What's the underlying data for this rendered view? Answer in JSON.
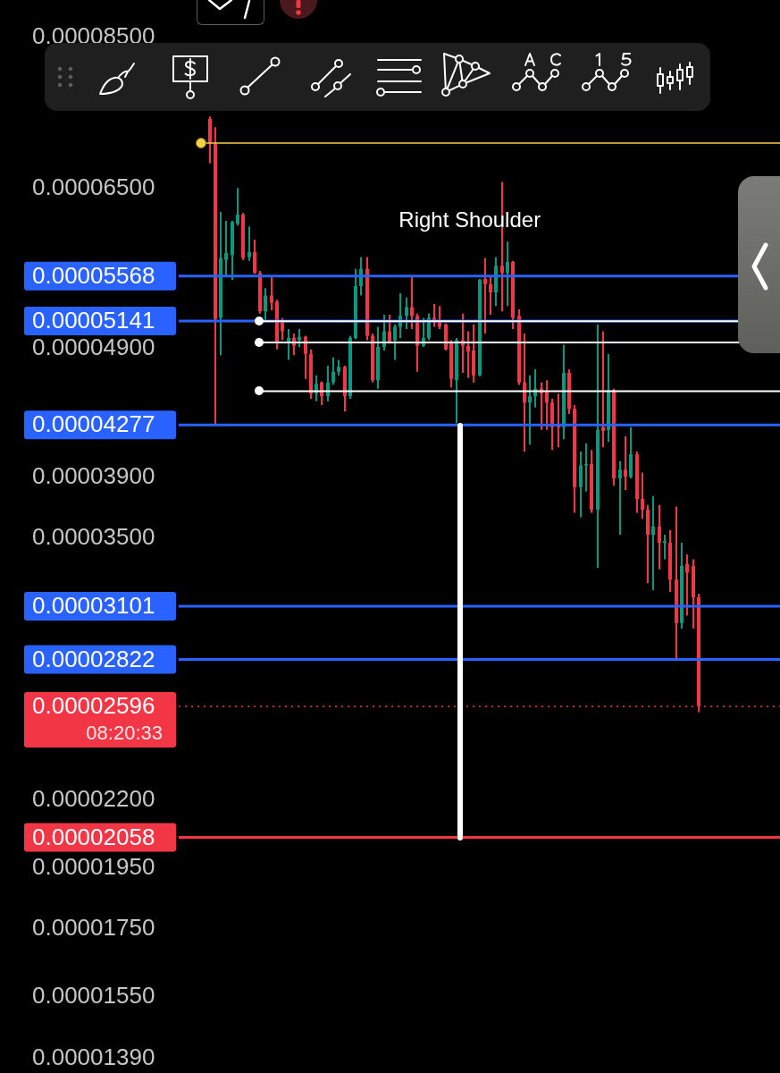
{
  "chart_data": {
    "type": "candlestick",
    "categories": [
      null,
      null,
      null,
      null,
      null,
      null,
      null,
      null,
      null,
      null,
      null,
      null,
      null,
      null,
      null,
      null,
      null,
      null,
      null,
      null,
      null,
      null,
      null,
      null,
      null,
      null,
      null,
      null,
      null,
      null,
      null,
      null,
      null,
      null,
      null,
      null,
      null,
      null,
      null,
      null,
      null,
      null,
      null,
      null,
      null,
      null,
      null,
      null,
      null,
      null,
      null,
      null,
      null,
      null,
      null,
      null,
      null,
      null,
      null,
      null,
      null,
      null,
      null,
      null,
      null,
      null,
      null,
      null,
      null,
      null,
      null,
      null,
      null,
      null,
      null,
      null,
      null,
      null,
      null,
      null,
      null,
      null,
      null,
      null,
      null,
      null,
      null,
      null,
      null,
      null,
      null,
      null,
      null,
      null,
      null,
      null,
      null,
      null,
      null,
      null,
      null,
      null,
      null,
      null,
      null,
      null,
      null
    ],
    "ohlc": [
      null,
      null,
      null,
      null,
      null,
      [
        7.36e-05,
        7.39e-05,
        6.8e-05,
        7.05e-05
      ],
      [
        7.04e-05,
        7.25e-05,
        4.27e-05,
        5.16e-05
      ],
      [
        5.17e-05,
        6.24e-05,
        4.84e-05,
        5.75e-05
      ],
      [
        5.73e-05,
        6.14e-05,
        5.57e-05,
        5.8e-05
      ],
      [
        5.78e-05,
        6.14e-05,
        5.53e-05,
        6.13e-05
      ],
      [
        6.11e-05,
        6.51e-05,
        6.09e-05,
        6.21e-05
      ],
      [
        6.21e-05,
        6.23e-05,
        5.73e-05,
        5.75e-05
      ],
      [
        5.76e-05,
        6.08e-05,
        5.72e-05,
        5.81e-05
      ],
      [
        5.81e-05,
        5.94e-05,
        5.59e-05,
        5.6e-05
      ],
      [
        5.6e-05,
        5.62e-05,
        5.21e-05,
        5.23e-05
      ],
      [
        5.23e-05,
        5.45e-05,
        5.13e-05,
        5.38e-05
      ],
      [
        5.38e-05,
        5.56e-05,
        5.24e-05,
        5.31e-05
      ],
      [
        5.32e-05,
        5.34e-05,
        4.89e-05,
        4.95e-05
      ],
      [
        5.13e-05,
        5.17e-05,
        4.97e-05,
        5.05e-05
      ],
      [
        4.95e-05,
        5.07e-05,
        4.8e-05,
        4.99e-05
      ],
      [
        4.99e-05,
        5.03e-05,
        4.84e-05,
        4.92e-05
      ],
      [
        4.97e-05,
        5.07e-05,
        4.91e-05,
        5e-05
      ],
      [
        5e-05,
        5.01e-05,
        4.64e-05,
        4.85e-05
      ],
      [
        4.85e-05,
        4.89e-05,
        4.48e-05,
        4.52e-05
      ],
      [
        4.52e-05,
        4.67e-05,
        4.46e-05,
        4.6e-05
      ],
      [
        4.61e-05,
        4.62e-05,
        4.43e-05,
        4.5e-05
      ],
      [
        4.5e-05,
        4.75e-05,
        4.46e-05,
        4.61e-05
      ],
      [
        4.61e-05,
        4.82e-05,
        4.59e-05,
        4.7e-05
      ],
      [
        4.7e-05,
        4.8e-05,
        4.67e-05,
        4.74e-05
      ],
      [
        4.74e-05,
        4.75e-05,
        4.38e-05,
        4.5e-05
      ],
      [
        4.5e-05,
        5.01e-05,
        4.48e-05,
        4.99e-05
      ],
      [
        4.99e-05,
        5.64e-05,
        4.98e-05,
        5.47e-05
      ],
      [
        5.47e-05,
        5.76e-05,
        5.38e-05,
        5.64e-05
      ],
      [
        5.64e-05,
        5.76e-05,
        4.97e-05,
        5.01e-05
      ],
      [
        5.01e-05,
        5.03e-05,
        4.61e-05,
        4.63e-05
      ],
      [
        4.63e-05,
        5.09e-05,
        4.56e-05,
        4.91e-05
      ],
      [
        4.91e-05,
        5.2e-05,
        4.88e-05,
        5.05e-05
      ],
      [
        5.05e-05,
        5.2e-05,
        4.94e-05,
        4.95e-05
      ],
      [
        4.97e-05,
        5.11e-05,
        4.8e-05,
        5.09e-05
      ],
      [
        5.09e-05,
        5.4e-05,
        4.99e-05,
        5.19e-05
      ],
      [
        5.19e-05,
        5.36e-05,
        5.07e-05,
        5.27e-05
      ],
      [
        5.27e-05,
        5.56e-05,
        5.07e-05,
        5.19e-05
      ],
      [
        5.19e-05,
        5.21e-05,
        4.7e-05,
        4.92e-05
      ],
      [
        4.92e-05,
        5.17e-05,
        4.91e-05,
        4.99e-05
      ],
      [
        4.99e-05,
        5.21e-05,
        4.97e-05,
        5.17e-05
      ],
      [
        5.17e-05,
        5.3e-05,
        5.09e-05,
        5.13e-05
      ],
      [
        5.13e-05,
        5.28e-05,
        5.07e-05,
        5.09e-05
      ],
      [
        5.11e-05,
        5.12e-05,
        4.88e-05,
        4.89e-05
      ],
      [
        4.95e-05,
        4.97e-05,
        4.57e-05,
        4.64e-05
      ],
      [
        4.63e-05,
        4.99e-05,
        4.29e-05,
        4.97e-05
      ],
      [
        4.97e-05,
        5.21e-05,
        4.69e-05,
        4.92e-05
      ],
      [
        4.92e-05,
        5.05e-05,
        4.65e-05,
        4.87e-05
      ],
      [
        4.88e-05,
        5.11e-05,
        4.61e-05,
        4.67e-05
      ],
      [
        4.67e-05,
        5.54e-05,
        4.66e-05,
        5.53e-05
      ],
      [
        5.54e-05,
        5.75e-05,
        5.03e-05,
        5.49e-05
      ],
      [
        5.49e-05,
        5.56e-05,
        5.2e-05,
        5.41e-05
      ],
      [
        5.41e-05,
        5.76e-05,
        5.28e-05,
        5.67e-05
      ],
      [
        5.67e-05,
        6.58e-05,
        5.23e-05,
        5.6e-05
      ],
      [
        5.6e-05,
        5.92e-05,
        5.28e-05,
        5.71e-05
      ],
      [
        5.71e-05,
        5.72e-05,
        5.07e-05,
        5.17e-05
      ],
      [
        5.19e-05,
        5.25e-05,
        4.59e-05,
        4.61e-05
      ],
      [
        4.61e-05,
        5.03e-05,
        4.08e-05,
        4.45e-05
      ],
      [
        4.45e-05,
        4.67e-05,
        4.13e-05,
        4.5e-05
      ],
      [
        4.5e-05,
        4.72e-05,
        4.41e-05,
        4.56e-05
      ],
      [
        4.56e-05,
        4.61e-05,
        4.24e-05,
        4.52e-05
      ],
      [
        4.54e-05,
        4.63e-05,
        4.24e-05,
        4.45e-05
      ],
      [
        4.45e-05,
        4.48e-05,
        4.09e-05,
        4.26e-05
      ],
      [
        4.28e-05,
        4.52e-05,
        4.11e-05,
        4.26e-05
      ],
      [
        4.26e-05,
        4.93e-05,
        4.17e-05,
        4.69e-05
      ],
      [
        4.69e-05,
        4.72e-05,
        4.36e-05,
        4.4e-05
      ],
      [
        4.4e-05,
        4.43e-05,
        3.66e-05,
        3.83e-05
      ],
      [
        3.83e-05,
        4.08e-05,
        3.63e-05,
        3.98e-05
      ],
      [
        3.98e-05,
        4.14e-05,
        3.8e-05,
        3.99e-05
      ],
      [
        3.99e-05,
        4.09e-05,
        3.66e-05,
        3.68e-05
      ],
      [
        3.68e-05,
        5.11e-05,
        3.32e-05,
        4.24e-05
      ],
      [
        4.26e-05,
        5.05e-05,
        4.11e-05,
        4.23e-05
      ],
      [
        4.24e-05,
        4.85e-05,
        4.15e-05,
        4.55e-05
      ],
      [
        4.55e-05,
        4.56e-05,
        3.84e-05,
        3.89e-05
      ],
      [
        3.89e-05,
        4.01e-05,
        3.52e-05,
        3.95e-05
      ],
      [
        3.95e-05,
        4.19e-05,
        3.81e-05,
        3.9e-05
      ],
      [
        3.9e-05,
        4.26e-05,
        3.89e-05,
        4.06e-05
      ],
      [
        4.06e-05,
        4.08e-05,
        3.66e-05,
        3.75e-05
      ],
      [
        3.75e-05,
        3.93e-05,
        3.62e-05,
        3.68e-05
      ],
      [
        3.68e-05,
        3.71e-05,
        3.23e-05,
        3.52e-05
      ],
      [
        3.52e-05,
        3.77e-05,
        3.19e-05,
        3.57e-05
      ],
      [
        3.57e-05,
        3.71e-05,
        3.31e-05,
        3.47e-05
      ],
      [
        3.47e-05,
        3.52e-05,
        3.37e-05,
        3.48e-05
      ],
      [
        3.47e-05,
        3.55e-05,
        3.18e-05,
        3.25e-05
      ],
      [
        3.25e-05,
        3.7e-05,
        2.82e-05,
        3.01e-05
      ],
      [
        3.01e-05,
        3.47e-05,
        2.98e-05,
        3.33e-05
      ],
      [
        3.34e-05,
        3.4e-05,
        3.05e-05,
        3.29e-05
      ],
      [
        3.33e-05,
        3.37e-05,
        2.98e-05,
        3.15e-05
      ],
      [
        3.15e-05,
        3.17e-05,
        2.57e-05,
        2.596e-05
      ],
      null,
      null,
      null,
      null,
      null,
      null,
      null,
      null,
      null,
      null,
      null,
      null,
      null,
      null
    ],
    "colors": [
      null,
      null,
      null,
      null,
      null,
      "#f23645",
      "#f23645",
      "#089981",
      "#089981",
      "#089981",
      "#089981",
      "#f23645",
      "#089981",
      "#f23645",
      "#f23645",
      "#089981",
      "#f23645",
      "#f23645",
      "#f23645",
      "#089981",
      "#f23645",
      "#089981",
      "#f23645",
      "#f23645",
      "#089981",
      "#f23645",
      "#089981",
      "#089981",
      "#089981",
      "#f23645",
      "#089981",
      "#089981",
      "#089981",
      "#f23645",
      "#f23645",
      "#089981",
      "#089981",
      "#f23645",
      "#089981",
      "#089981",
      "#089981",
      "#f23645",
      "#f23645",
      "#089981",
      "#089981",
      "#f23645",
      "#f23645",
      "#f23645",
      "#f23645",
      "#089981",
      "#f23645",
      "#f23645",
      "#f23645",
      "#089981",
      "#f23645",
      "#f23645",
      "#089981",
      "#f23645",
      "#089981",
      "#f23645",
      "#f23645",
      "#f23645",
      "#089981",
      "#089981",
      "#f23645",
      "#f23645",
      "#f23645",
      "#f23645",
      "#089981",
      "#f23645",
      "#f23645",
      "#089981",
      "#089981",
      "#f23645",
      "#089981",
      "#f23645",
      "#089981",
      "#f23645",
      "#089981",
      "#f23645",
      "#089981",
      "#f23645",
      "#f23645",
      "#f23645",
      "#089981",
      "#f23645",
      "#089981",
      "#f23645",
      "#f23645",
      "#089981",
      "#f23645",
      "#f23645",
      "#f23645",
      null,
      null,
      null,
      null,
      null,
      null,
      null,
      null,
      null,
      null,
      null,
      null,
      null,
      null
    ],
    "log": true,
    "ylim": [
      1.39e-05,
      8.5e-05
    ],
    "yticks": [
      {
        "value": 8.5e-05,
        "label": "0.00008500"
      },
      {
        "value": 6.5e-05,
        "label": "0.00006500"
      },
      {
        "value": 4.9e-05,
        "label": "0.00004900"
      },
      {
        "value": 3.9e-05,
        "label": "0.00003900"
      },
      {
        "value": 3.5e-05,
        "label": "0.00003500"
      },
      {
        "value": 2.2e-05,
        "label": "0.00002200"
      },
      {
        "value": 1.95e-05,
        "label": "0.00001950"
      },
      {
        "value": 1.75e-05,
        "label": "0.00001750"
      },
      {
        "value": 1.55e-05,
        "label": "0.00001550"
      },
      {
        "value": 1.39e-05,
        "label": "0.00001390"
      }
    ],
    "tick_labels": "y",
    "ref_lines": [
      {
        "axis": "y",
        "value": 5.568e-05,
        "label": "0.00005568",
        "color": "#2962ff"
      },
      {
        "axis": "y",
        "value": 5.141e-05,
        "label": "0.00005141",
        "color": "#2962ff"
      },
      {
        "axis": "y",
        "value": 4.277e-05,
        "label": "0.00004277",
        "color": "#2962ff"
      },
      {
        "axis": "y",
        "value": 3.101e-05,
        "label": "0.00003101",
        "color": "#2962ff"
      },
      {
        "axis": "y",
        "value": 2.822e-05,
        "label": "0.00002822",
        "color": "#2962ff"
      },
      {
        "axis": "y",
        "value": 2.058e-05,
        "label": "0.00002058",
        "color": "#f23645"
      },
      {
        "axis": "y",
        "value": 2.596e-05,
        "label": "0.00002596\n08:20:33",
        "color": "#f23645",
        "line_style": "dotted"
      },
      {
        "axis": "y",
        "value": 7.05e-05,
        "color": "#f7d046"
      },
      {
        "axis": "y",
        "value": 5.14e-05,
        "color": "#ffffff"
      },
      {
        "axis": "y",
        "value": 4.95e-05,
        "color": "#ffffff"
      },
      {
        "axis": "y",
        "value": 4.54e-05,
        "color": "#ffffff"
      }
    ],
    "annotations": [
      "Right Shoulder"
    ]
  }
}
